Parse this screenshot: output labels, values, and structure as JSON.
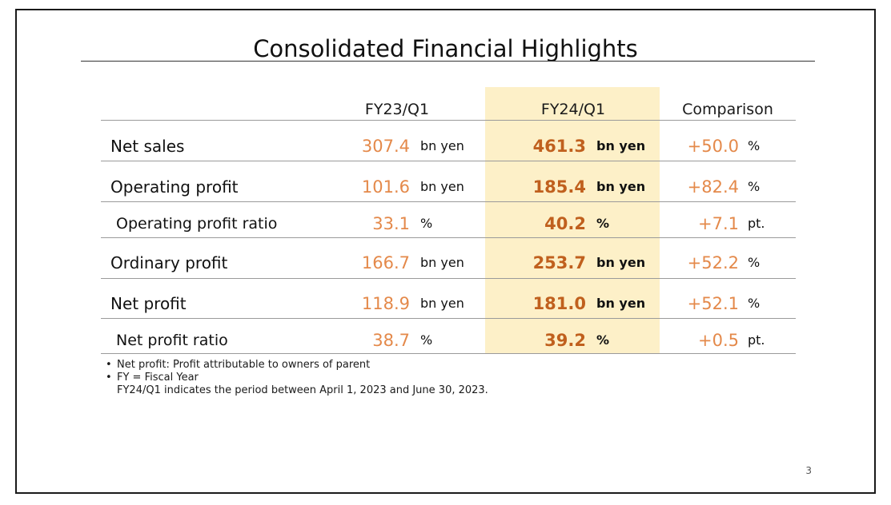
{
  "slide": {
    "title": "Consolidated Financial Highlights",
    "page_number": "3"
  },
  "table": {
    "headers": {
      "prev": "FY23/Q1",
      "curr": "FY24/Q1",
      "comparison": "Comparison"
    },
    "rows": [
      {
        "label": "Net sales",
        "prev_value": "307.4",
        "prev_unit": "bn yen",
        "curr_value": "461.3",
        "curr_unit": "bn yen",
        "comp_value": "+50.0",
        "comp_unit": "%"
      },
      {
        "label": "Operating profit",
        "prev_value": "101.6",
        "prev_unit": "bn yen",
        "curr_value": "185.4",
        "curr_unit": "bn yen",
        "comp_value": "+82.4",
        "comp_unit": "%"
      },
      {
        "label": "Operating profit ratio",
        "prev_value": "33.1",
        "prev_unit": "%",
        "curr_value": "40.2",
        "curr_unit": "%",
        "comp_value": "+7.1",
        "comp_unit": "pt."
      },
      {
        "label": "Ordinary profit",
        "prev_value": "166.7",
        "prev_unit": "bn yen",
        "curr_value": "253.7",
        "curr_unit": "bn yen",
        "comp_value": "+52.2",
        "comp_unit": "%"
      },
      {
        "label": "Net profit",
        "prev_value": "118.9",
        "prev_unit": "bn yen",
        "curr_value": "181.0",
        "curr_unit": "bn yen",
        "comp_value": "+52.1",
        "comp_unit": "%"
      },
      {
        "label": "Net profit ratio",
        "prev_value": "38.7",
        "prev_unit": "%",
        "curr_value": "39.2",
        "curr_unit": "%",
        "comp_value": "+0.5",
        "comp_unit": "pt."
      }
    ]
  },
  "notes": {
    "bullet": "•",
    "items": [
      "Net profit: Profit attributable to owners of parent",
      "FY = Fiscal Year"
    ],
    "continuation": "FY24/Q1 indicates the period between April 1, 2023 and June 30, 2023."
  },
  "colors": {
    "highlight": "#fdf0c8",
    "value_light": "#e4894a",
    "value_bold": "#c0601e"
  }
}
